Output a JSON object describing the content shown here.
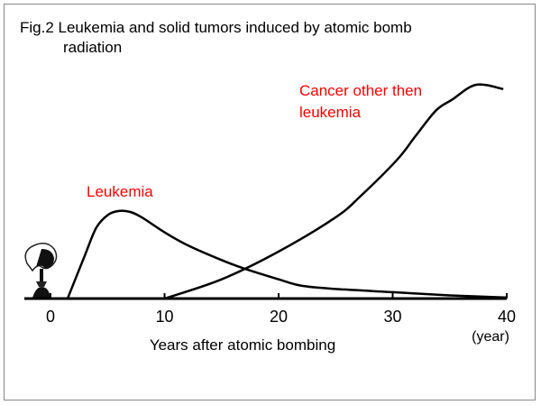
{
  "chart_data": {
    "type": "line",
    "title_line1": "Fig.2  Leukemia and solid tumors induced by atomic bomb",
    "title_line2": "radiation",
    "xlabel": "Years after atomic bombing",
    "xunit": "(year)",
    "ylabel": "",
    "xlim": [
      0,
      40
    ],
    "ylim": [
      0,
      100
    ],
    "xticks": [
      0,
      10,
      20,
      30,
      40
    ],
    "grid": false,
    "series": [
      {
        "name": "Leukemia",
        "label_color": "#ff0000",
        "color": "#000000",
        "x": [
          1.5,
          3,
          4,
          5,
          6,
          7,
          8,
          10,
          12,
          15,
          17,
          20,
          22,
          25,
          30,
          35,
          40
        ],
        "y": [
          0,
          20,
          33,
          39,
          41,
          40.5,
          38,
          31,
          25,
          18,
          14,
          9,
          6,
          4.5,
          3,
          1.5,
          0.5
        ]
      },
      {
        "name": "Cancer other then\nleukemia",
        "label_color": "#ff0000",
        "color": "#000000",
        "x": [
          10,
          15,
          20,
          25,
          27.2,
          30.4,
          32,
          33.8,
          35.2,
          37.3,
          39.7
        ],
        "y": [
          0,
          9,
          22,
          38,
          48,
          65,
          76,
          88,
          93,
          100,
          98
        ]
      }
    ],
    "icon": "mushroom-cloud-icon"
  }
}
